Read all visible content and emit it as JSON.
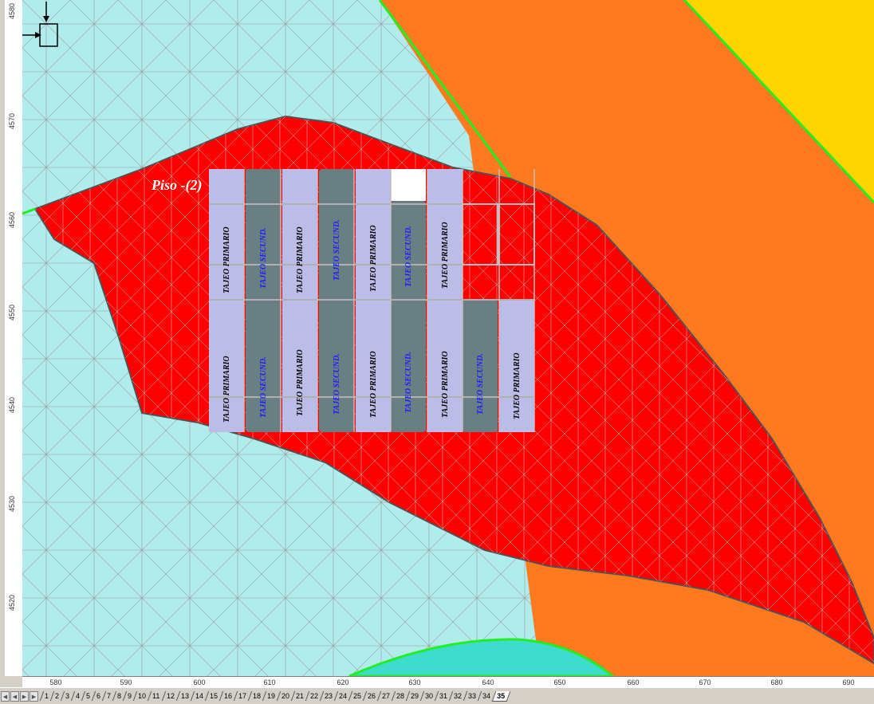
{
  "y_axis_ticks": [
    "4580",
    "4570",
    "4560",
    "4550",
    "4540",
    "4530",
    "4520"
  ],
  "x_axis_ticks": [
    "580",
    "590",
    "600",
    "610",
    "620",
    "630",
    "640",
    "650",
    "660",
    "670",
    "680",
    "690"
  ],
  "level_label": "Piso -(2)",
  "stope_labels": {
    "primary": "TAJEO PRIMARIO",
    "secondary": "TAJEO SECUND."
  },
  "sheet_tabs": [
    "1",
    "2",
    "3",
    "4",
    "5",
    "6",
    "7",
    "8",
    "9",
    "10",
    "11",
    "12",
    "13",
    "14",
    "15",
    "16",
    "17",
    "18",
    "19",
    "20",
    "21",
    "22",
    "23",
    "24",
    "25",
    "26",
    "27",
    "28",
    "29",
    "30",
    "31",
    "32",
    "33",
    "34",
    "35"
  ],
  "active_tab": "35",
  "colors": {
    "background_zone": "#b0ecec",
    "ore_body": "#ff0000",
    "orange_zone": "#ff7a1f",
    "yellow_zone": "#ffd500",
    "turquoise_zone": "#3edccc",
    "primary_stope": "#bcbce8",
    "secondary_stope": "#6a7f84",
    "mesh_lines": "#9a9a9a",
    "boundary_green": "#22ee22"
  }
}
